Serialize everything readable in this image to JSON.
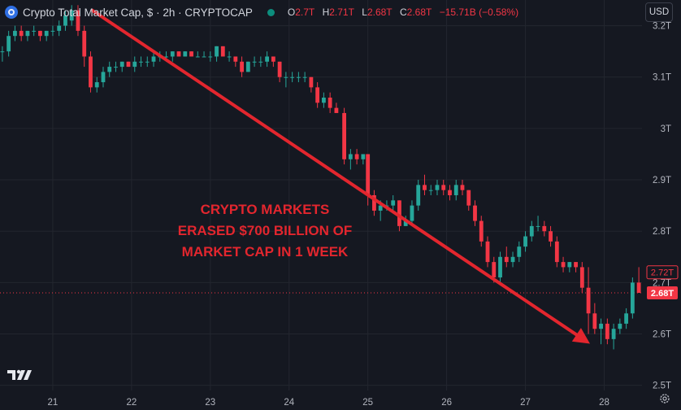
{
  "header": {
    "title": "Crypto Total Market Cap, $ · 2h · CRYPTOCAP",
    "ohlc": [
      {
        "k": "O",
        "v": "2.7T"
      },
      {
        "k": "H",
        "v": "2.71T"
      },
      {
        "k": "L",
        "v": "2.68T"
      },
      {
        "k": "C",
        "v": "2.68T"
      }
    ],
    "change": "−15.71B (−0.58%)",
    "currency": "USD"
  },
  "annotation": {
    "lines": [
      "CRYPTO MARKETS",
      "ERASED $700 BILLION OF",
      "MARKET CAP IN 1 WEEK"
    ],
    "color": "#e3262e"
  },
  "colors": {
    "up": "#26a69a",
    "down": "#f23645",
    "grid": "#23262f",
    "text": "#b2b5be"
  },
  "chart_data": {
    "type": "candlestick",
    "title": "Crypto Total Market Cap, $ · 2h · CRYPTOCAP",
    "x_tick_labels": [
      "21",
      "22",
      "23",
      "24",
      "25",
      "26",
      "27",
      "28"
    ],
    "y_tick_labels": [
      "3.2T",
      "3.1T",
      "3T",
      "2.9T",
      "2.8T",
      "2.7T",
      "2.6T",
      "2.5T"
    ],
    "y_ticks": [
      3.2,
      3.1,
      3.0,
      2.9,
      2.8,
      2.7,
      2.6,
      2.5
    ],
    "ylim": [
      2.49,
      3.25
    ],
    "xlim": [
      20.33,
      28.48
    ],
    "last_price": {
      "label": "2.68T",
      "value": 2.68
    },
    "prev_close": {
      "label": "2.72T",
      "value": 2.72
    },
    "trend_arrow": {
      "from": [
        21.5,
        3.23
      ],
      "to": [
        28.9,
        2.6
      ]
    },
    "candles": [
      [
        20.36,
        3.15,
        3.16,
        3.13,
        3.15
      ],
      [
        20.44,
        3.15,
        3.19,
        3.14,
        3.18
      ],
      [
        20.52,
        3.18,
        3.2,
        3.17,
        3.19
      ],
      [
        20.6,
        3.19,
        3.2,
        3.17,
        3.18
      ],
      [
        20.68,
        3.18,
        3.19,
        3.17,
        3.19
      ],
      [
        20.76,
        3.19,
        3.2,
        3.18,
        3.19
      ],
      [
        20.84,
        3.19,
        3.19,
        3.17,
        3.18
      ],
      [
        20.92,
        3.18,
        3.19,
        3.17,
        3.19
      ],
      [
        21.0,
        3.19,
        3.2,
        3.18,
        3.19
      ],
      [
        21.08,
        3.19,
        3.21,
        3.18,
        3.2
      ],
      [
        21.16,
        3.2,
        3.23,
        3.19,
        3.22
      ],
      [
        21.24,
        3.21,
        3.24,
        3.2,
        3.23
      ],
      [
        21.32,
        3.23,
        3.24,
        3.18,
        3.19
      ],
      [
        21.4,
        3.19,
        3.2,
        3.12,
        3.14
      ],
      [
        21.48,
        3.14,
        3.15,
        3.07,
        3.08
      ],
      [
        21.56,
        3.08,
        3.1,
        3.07,
        3.09
      ],
      [
        21.64,
        3.09,
        3.12,
        3.08,
        3.11
      ],
      [
        21.72,
        3.11,
        3.13,
        3.1,
        3.12
      ],
      [
        21.8,
        3.12,
        3.13,
        3.11,
        3.12
      ],
      [
        21.88,
        3.12,
        3.13,
        3.11,
        3.13
      ],
      [
        21.96,
        3.13,
        3.13,
        3.12,
        3.12
      ],
      [
        22.04,
        3.12,
        3.14,
        3.11,
        3.13
      ],
      [
        22.12,
        3.13,
        3.14,
        3.12,
        3.13
      ],
      [
        22.2,
        3.13,
        3.14,
        3.12,
        3.13
      ],
      [
        22.28,
        3.13,
        3.15,
        3.12,
        3.14
      ],
      [
        22.36,
        3.14,
        3.15,
        3.13,
        3.14
      ],
      [
        22.44,
        3.14,
        3.15,
        3.13,
        3.14
      ],
      [
        22.52,
        3.14,
        3.15,
        3.13,
        3.15
      ],
      [
        22.6,
        3.15,
        3.15,
        3.14,
        3.14
      ],
      [
        22.68,
        3.14,
        3.15,
        3.14,
        3.15
      ],
      [
        22.76,
        3.15,
        3.15,
        3.14,
        3.14
      ],
      [
        22.84,
        3.14,
        3.15,
        3.14,
        3.14
      ],
      [
        22.92,
        3.14,
        3.15,
        3.14,
        3.14
      ],
      [
        23.0,
        3.14,
        3.15,
        3.13,
        3.14
      ],
      [
        23.08,
        3.14,
        3.16,
        3.13,
        3.16
      ],
      [
        23.16,
        3.16,
        3.16,
        3.14,
        3.14
      ],
      [
        23.24,
        3.14,
        3.15,
        3.13,
        3.14
      ],
      [
        23.32,
        3.14,
        3.14,
        3.12,
        3.13
      ],
      [
        23.4,
        3.13,
        3.14,
        3.1,
        3.11
      ],
      [
        23.48,
        3.11,
        3.13,
        3.11,
        3.13
      ],
      [
        23.56,
        3.13,
        3.14,
        3.12,
        3.13
      ],
      [
        23.64,
        3.13,
        3.14,
        3.12,
        3.13
      ],
      [
        23.72,
        3.13,
        3.15,
        3.12,
        3.14
      ],
      [
        23.8,
        3.14,
        3.14,
        3.12,
        3.13
      ],
      [
        23.88,
        3.13,
        3.13,
        3.09,
        3.1
      ],
      [
        23.96,
        3.1,
        3.11,
        3.08,
        3.1
      ],
      [
        24.04,
        3.1,
        3.11,
        3.09,
        3.1
      ],
      [
        24.12,
        3.1,
        3.11,
        3.09,
        3.1
      ],
      [
        24.2,
        3.1,
        3.11,
        3.09,
        3.1
      ],
      [
        24.28,
        3.1,
        3.1,
        3.07,
        3.08
      ],
      [
        24.36,
        3.08,
        3.09,
        3.04,
        3.05
      ],
      [
        24.44,
        3.05,
        3.07,
        3.04,
        3.06
      ],
      [
        24.52,
        3.06,
        3.07,
        3.03,
        3.04
      ],
      [
        24.6,
        3.04,
        3.05,
        3.03,
        3.03
      ],
      [
        24.7,
        3.03,
        3.04,
        2.93,
        2.94
      ],
      [
        24.78,
        2.94,
        2.96,
        2.92,
        2.95
      ],
      [
        24.86,
        2.95,
        2.96,
        2.93,
        2.94
      ],
      [
        24.94,
        2.94,
        2.95,
        2.93,
        2.95
      ],
      [
        25.0,
        2.95,
        2.95,
        2.85,
        2.87
      ],
      [
        25.08,
        2.87,
        2.88,
        2.83,
        2.84
      ],
      [
        25.16,
        2.84,
        2.86,
        2.82,
        2.85
      ],
      [
        25.24,
        2.85,
        2.86,
        2.84,
        2.85
      ],
      [
        25.32,
        2.85,
        2.87,
        2.84,
        2.86
      ],
      [
        25.4,
        2.86,
        2.86,
        2.8,
        2.81
      ],
      [
        25.48,
        2.81,
        2.83,
        2.81,
        2.82
      ],
      [
        25.56,
        2.82,
        2.86,
        2.81,
        2.85
      ],
      [
        25.64,
        2.85,
        2.9,
        2.84,
        2.89
      ],
      [
        25.72,
        2.89,
        2.91,
        2.87,
        2.88
      ],
      [
        25.8,
        2.88,
        2.89,
        2.87,
        2.88
      ],
      [
        25.88,
        2.88,
        2.9,
        2.87,
        2.89
      ],
      [
        25.96,
        2.89,
        2.9,
        2.87,
        2.88
      ],
      [
        26.04,
        2.88,
        2.89,
        2.86,
        2.87
      ],
      [
        26.12,
        2.87,
        2.9,
        2.86,
        2.89
      ],
      [
        26.2,
        2.89,
        2.9,
        2.87,
        2.88
      ],
      [
        26.28,
        2.88,
        2.88,
        2.84,
        2.85
      ],
      [
        26.36,
        2.85,
        2.86,
        2.81,
        2.82
      ],
      [
        26.44,
        2.82,
        2.83,
        2.77,
        2.78
      ],
      [
        26.52,
        2.78,
        2.79,
        2.73,
        2.74
      ],
      [
        26.6,
        2.74,
        2.75,
        2.7,
        2.71
      ],
      [
        26.68,
        2.71,
        2.76,
        2.7,
        2.75
      ],
      [
        26.76,
        2.75,
        2.77,
        2.73,
        2.74
      ],
      [
        26.84,
        2.74,
        2.76,
        2.73,
        2.75
      ],
      [
        26.92,
        2.75,
        2.78,
        2.74,
        2.77
      ],
      [
        27.0,
        2.77,
        2.8,
        2.76,
        2.79
      ],
      [
        27.08,
        2.79,
        2.82,
        2.78,
        2.81
      ],
      [
        27.16,
        2.81,
        2.83,
        2.8,
        2.81
      ],
      [
        27.24,
        2.81,
        2.82,
        2.79,
        2.8
      ],
      [
        27.32,
        2.8,
        2.81,
        2.77,
        2.78
      ],
      [
        27.4,
        2.78,
        2.79,
        2.73,
        2.74
      ],
      [
        27.48,
        2.74,
        2.75,
        2.72,
        2.73
      ],
      [
        27.56,
        2.73,
        2.74,
        2.72,
        2.74
      ],
      [
        27.64,
        2.74,
        2.74,
        2.72,
        2.73
      ],
      [
        27.72,
        2.73,
        2.74,
        2.68,
        2.69
      ],
      [
        27.8,
        2.69,
        2.73,
        2.6,
        2.64
      ],
      [
        27.88,
        2.64,
        2.66,
        2.6,
        2.61
      ],
      [
        27.96,
        2.61,
        2.63,
        2.58,
        2.62
      ],
      [
        28.04,
        2.62,
        2.63,
        2.58,
        2.59
      ],
      [
        28.12,
        2.59,
        2.62,
        2.57,
        2.61
      ],
      [
        28.2,
        2.61,
        2.63,
        2.6,
        2.62
      ],
      [
        28.28,
        2.62,
        2.65,
        2.61,
        2.64
      ],
      [
        28.36,
        2.64,
        2.71,
        2.63,
        2.7
      ],
      [
        28.44,
        2.7,
        2.73,
        2.68,
        2.68
      ]
    ]
  }
}
